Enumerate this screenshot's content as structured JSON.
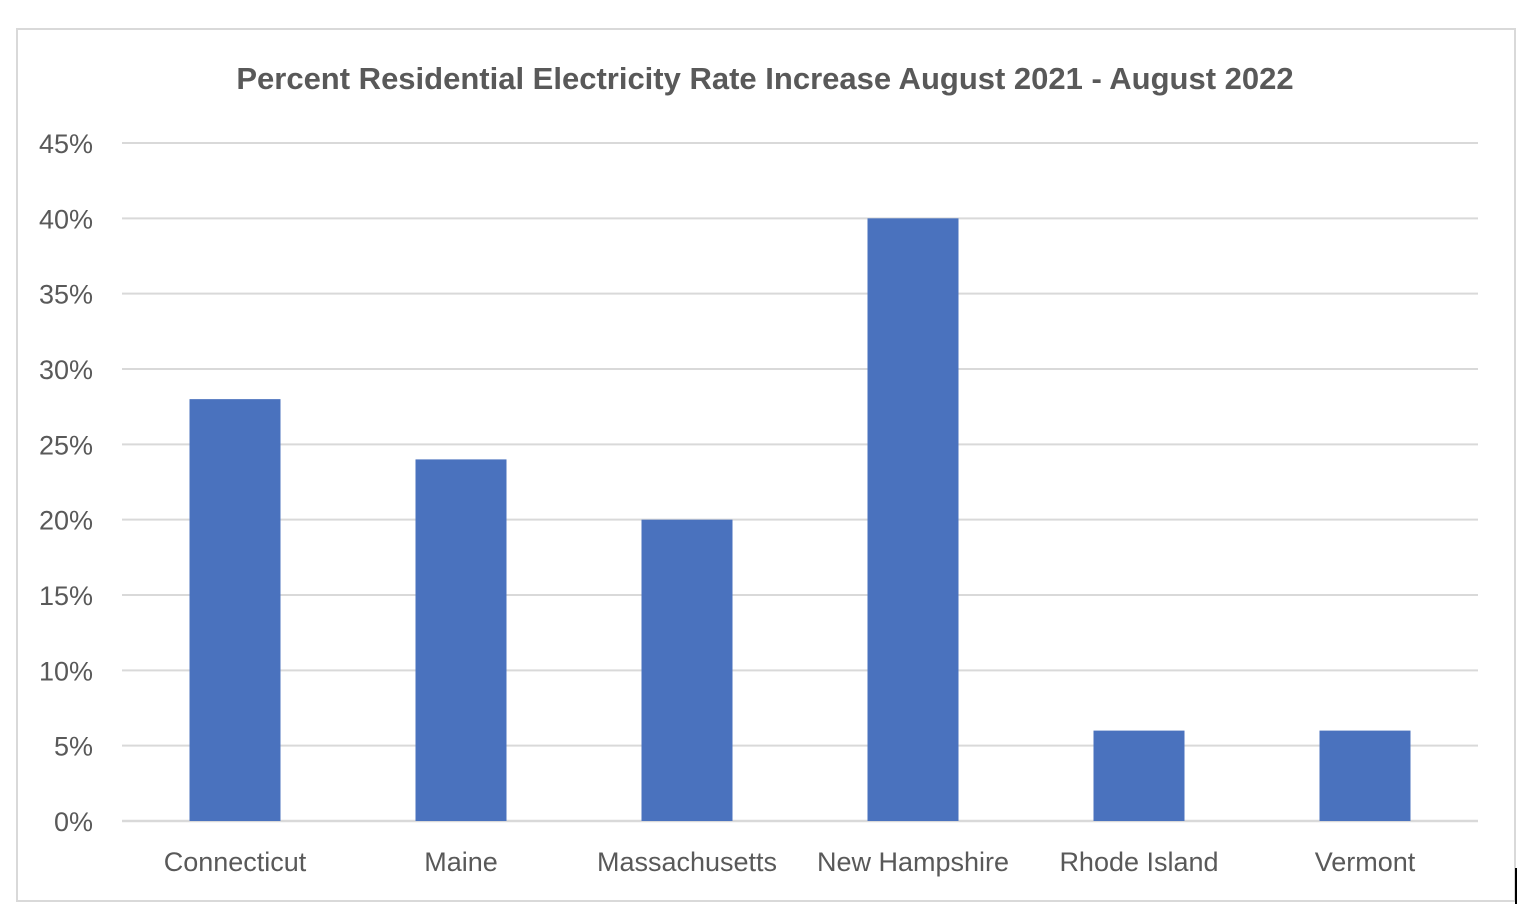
{
  "chart_data": {
    "type": "bar",
    "title": "Percent Residential Electricity Rate Increase August 2021 - August 2022",
    "xlabel": "",
    "ylabel": "",
    "categories": [
      "Connecticut",
      "Maine",
      "Massachusetts",
      "New Hampshire",
      "Rhode Island",
      "Vermont"
    ],
    "values": [
      28,
      24,
      20,
      40,
      6,
      6
    ],
    "unit": "%",
    "ylim": [
      0,
      45
    ],
    "yticks": [
      0,
      5,
      10,
      15,
      20,
      25,
      30,
      35,
      40,
      45
    ],
    "ytick_labels": [
      "0%",
      "5%",
      "10%",
      "15%",
      "20%",
      "25%",
      "30%",
      "35%",
      "40%",
      "45%"
    ],
    "grid": true,
    "legend": false,
    "colors": {
      "bar": "#4a72be",
      "grid": "#d9d9d9",
      "text": "#595959",
      "frame": "#d9d9d9"
    }
  }
}
